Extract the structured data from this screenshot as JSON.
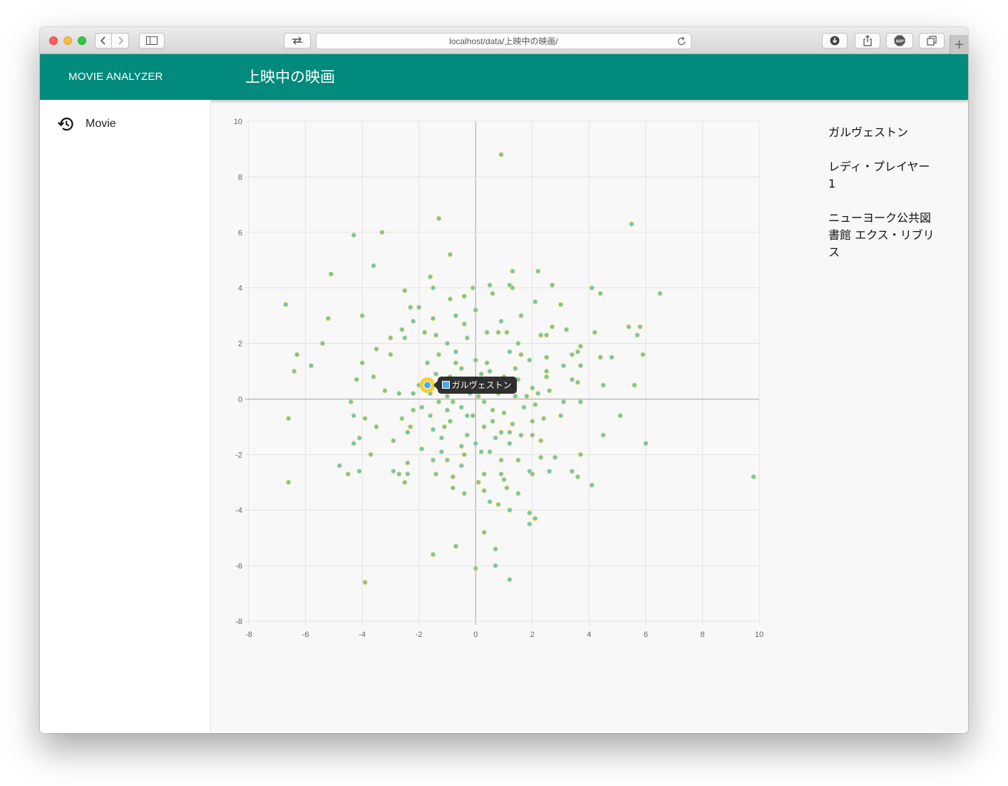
{
  "browser": {
    "url": "localhost/data/上映中の映画/"
  },
  "appbar": {
    "brand": "MOVIE ANALYZER",
    "title": "上映中の映画"
  },
  "sidebar": {
    "items": [
      {
        "label": "Movie",
        "icon": "history-icon"
      }
    ]
  },
  "movie_list": [
    "ガルヴェストン",
    "レディ・プレイヤー1",
    "ニューヨーク公共図書館 エクス・リブリス"
  ],
  "tooltip": {
    "label": "ガルヴェストン",
    "swatch_color": "#4ea9ec"
  },
  "colors": {
    "accent": "#028a7c",
    "point_fill": "#5ec8c8",
    "point_stroke": "#f2d04a",
    "highlight": "#f7cf3a",
    "highlight_inner": "#4ea9ec"
  },
  "chart_data": {
    "type": "scatter",
    "xlim": [
      -8,
      10
    ],
    "ylim": [
      -8,
      10
    ],
    "x_ticks": [
      -8,
      -6,
      -4,
      -2,
      0,
      2,
      4,
      6,
      8,
      10
    ],
    "y_ticks": [
      -8,
      -6,
      -4,
      -2,
      0,
      2,
      4,
      6,
      8,
      10
    ],
    "grid": true,
    "highlighted_point": {
      "x": -1.7,
      "y": 0.5,
      "label": "ガルヴェストン"
    },
    "points": [
      [
        0.9,
        8.8
      ],
      [
        -1.3,
        6.5
      ],
      [
        5.5,
        6.3
      ],
      [
        -4.3,
        5.9
      ],
      [
        -3.3,
        6.0
      ],
      [
        -0.9,
        5.2
      ],
      [
        -3.6,
        4.8
      ],
      [
        -5.1,
        4.5
      ],
      [
        1.3,
        4.6
      ],
      [
        2.2,
        4.6
      ],
      [
        -1.6,
        4.4
      ],
      [
        -1.5,
        4.0
      ],
      [
        0.5,
        4.1
      ],
      [
        1.2,
        4.1
      ],
      [
        2.7,
        4.1
      ],
      [
        4.1,
        4.0
      ],
      [
        4.4,
        3.8
      ],
      [
        6.5,
        3.8
      ],
      [
        -6.7,
        3.4
      ],
      [
        -2.5,
        3.9
      ],
      [
        -0.9,
        3.6
      ],
      [
        -0.4,
        3.7
      ],
      [
        0.6,
        3.8
      ],
      [
        1.3,
        4.0
      ],
      [
        2.1,
        3.5
      ],
      [
        3.0,
        3.4
      ],
      [
        -0.1,
        4.0
      ],
      [
        -2.0,
        3.3
      ],
      [
        -4.0,
        3.0
      ],
      [
        -5.2,
        2.9
      ],
      [
        -0.7,
        3.0
      ],
      [
        0.0,
        3.2
      ],
      [
        -2.3,
        3.3
      ],
      [
        -1.5,
        2.9
      ],
      [
        0.9,
        2.8
      ],
      [
        1.6,
        3.0
      ],
      [
        -2.2,
        2.8
      ],
      [
        -1.8,
        2.4
      ],
      [
        -2.6,
        2.5
      ],
      [
        -0.4,
        2.7
      ],
      [
        0.4,
        2.4
      ],
      [
        1.1,
        2.4
      ],
      [
        2.3,
        2.3
      ],
      [
        2.7,
        2.6
      ],
      [
        3.2,
        2.5
      ],
      [
        4.2,
        2.4
      ],
      [
        5.4,
        2.6
      ],
      [
        5.8,
        2.6
      ],
      [
        -3.0,
        2.2
      ],
      [
        -2.5,
        2.2
      ],
      [
        -1.4,
        2.3
      ],
      [
        -0.3,
        2.2
      ],
      [
        0.8,
        2.4
      ],
      [
        1.5,
        2.0
      ],
      [
        2.5,
        2.3
      ],
      [
        5.7,
        2.3
      ],
      [
        -5.4,
        2.0
      ],
      [
        -3.5,
        1.8
      ],
      [
        -1.3,
        1.6
      ],
      [
        -0.7,
        1.7
      ],
      [
        1.2,
        1.7
      ],
      [
        1.6,
        1.6
      ],
      [
        2.5,
        1.5
      ],
      [
        3.4,
        1.6
      ],
      [
        3.6,
        1.7
      ],
      [
        3.7,
        1.9
      ],
      [
        4.4,
        1.5
      ],
      [
        4.8,
        1.5
      ],
      [
        5.9,
        1.6
      ],
      [
        -6.3,
        1.6
      ],
      [
        -5.8,
        1.2
      ],
      [
        -4.0,
        1.3
      ],
      [
        -1.7,
        1.3
      ],
      [
        -0.7,
        1.3
      ],
      [
        0.0,
        1.4
      ],
      [
        0.5,
        1.0
      ],
      [
        1.4,
        1.1
      ],
      [
        2.5,
        1.0
      ],
      [
        3.1,
        1.2
      ],
      [
        3.7,
        1.2
      ],
      [
        -6.4,
        1.0
      ],
      [
        -4.2,
        0.7
      ],
      [
        -3.6,
        0.8
      ],
      [
        -1.4,
        0.9
      ],
      [
        -0.9,
        0.8
      ],
      [
        -0.3,
        0.7
      ],
      [
        0.2,
        0.9
      ],
      [
        1.0,
        0.8
      ],
      [
        1.5,
        0.7
      ],
      [
        2.5,
        0.8
      ],
      [
        3.4,
        0.7
      ],
      [
        -3.2,
        0.3
      ],
      [
        -2.7,
        0.2
      ],
      [
        -2.2,
        0.2
      ],
      [
        -1.2,
        0.5
      ],
      [
        -0.6,
        0.4
      ],
      [
        -0.2,
        0.2
      ],
      [
        0.4,
        0.6
      ],
      [
        0.8,
        0.2
      ],
      [
        1.3,
        0.5
      ],
      [
        2.0,
        0.4
      ],
      [
        2.6,
        0.3
      ],
      [
        3.6,
        0.6
      ],
      [
        4.5,
        0.5
      ],
      [
        5.6,
        0.5
      ],
      [
        -2.0,
        0.5
      ],
      [
        -1.0,
        0.1
      ],
      [
        0.1,
        0.1
      ],
      [
        1.8,
        0.1
      ],
      [
        -4.4,
        -0.1
      ],
      [
        -1.9,
        -0.3
      ],
      [
        -1.0,
        -0.4
      ],
      [
        -0.5,
        -0.3
      ],
      [
        0.3,
        -0.1
      ],
      [
        1.0,
        -0.5
      ],
      [
        1.7,
        -0.3
      ],
      [
        2.1,
        -0.2
      ],
      [
        3.1,
        -0.1
      ],
      [
        3.7,
        -0.1
      ],
      [
        -6.6,
        -0.7
      ],
      [
        -4.3,
        -0.6
      ],
      [
        -3.9,
        -0.7
      ],
      [
        -2.6,
        -0.7
      ],
      [
        -1.6,
        -0.6
      ],
      [
        -0.9,
        -0.8
      ],
      [
        -0.3,
        -0.6
      ],
      [
        0.6,
        -0.8
      ],
      [
        1.3,
        -0.9
      ],
      [
        2.0,
        -0.8
      ],
      [
        2.4,
        -0.7
      ],
      [
        3.0,
        -0.6
      ],
      [
        5.1,
        -0.6
      ],
      [
        -3.5,
        -1.0
      ],
      [
        -2.3,
        -1.0
      ],
      [
        -1.5,
        -1.1
      ],
      [
        -1.1,
        -1.0
      ],
      [
        -0.3,
        -1.3
      ],
      [
        0.3,
        -1.0
      ],
      [
        0.9,
        -1.2
      ],
      [
        1.6,
        -1.3
      ],
      [
        2.0,
        -1.3
      ],
      [
        2.3,
        -1.5
      ],
      [
        4.5,
        -1.3
      ],
      [
        -4.1,
        -1.4
      ],
      [
        -2.9,
        -1.5
      ],
      [
        -1.9,
        -1.8
      ],
      [
        -1.2,
        -1.4
      ],
      [
        -0.5,
        -1.7
      ],
      [
        0.5,
        -1.9
      ],
      [
        1.2,
        -1.6
      ],
      [
        2.3,
        -2.1
      ],
      [
        3.7,
        -2.0
      ],
      [
        6.0,
        -1.6
      ],
      [
        -4.3,
        -1.6
      ],
      [
        -3.7,
        -2.0
      ],
      [
        -1.5,
        -2.2
      ],
      [
        -1.0,
        -2.2
      ],
      [
        -0.4,
        -2.0
      ],
      [
        0.2,
        -1.9
      ],
      [
        0.9,
        -2.2
      ],
      [
        1.5,
        -2.2
      ],
      [
        2.8,
        -2.1
      ],
      [
        -4.8,
        -2.4
      ],
      [
        -4.1,
        -2.6
      ],
      [
        -2.9,
        -2.6
      ],
      [
        -2.4,
        -2.3
      ],
      [
        -1.4,
        -2.7
      ],
      [
        -0.5,
        -2.4
      ],
      [
        0.3,
        -2.7
      ],
      [
        0.9,
        -2.7
      ],
      [
        1.9,
        -2.6
      ],
      [
        2.6,
        -2.6
      ],
      [
        3.4,
        -2.6
      ],
      [
        -4.5,
        -2.7
      ],
      [
        -2.7,
        -2.7
      ],
      [
        -2.4,
        -2.7
      ],
      [
        -0.8,
        -2.8
      ],
      [
        0.1,
        -3.0
      ],
      [
        1.0,
        -2.9
      ],
      [
        2.0,
        -2.7
      ],
      [
        3.6,
        -2.8
      ],
      [
        9.8,
        -2.8
      ],
      [
        -6.6,
        -3.0
      ],
      [
        -2.5,
        -3.0
      ],
      [
        -0.8,
        -3.2
      ],
      [
        -0.4,
        -3.4
      ],
      [
        0.3,
        -3.3
      ],
      [
        1.1,
        -3.2
      ],
      [
        1.5,
        -3.4
      ],
      [
        4.1,
        -3.1
      ],
      [
        0.5,
        -3.7
      ],
      [
        0.8,
        -3.8
      ],
      [
        1.2,
        -4.0
      ],
      [
        1.9,
        -4.1
      ],
      [
        2.1,
        -4.3
      ],
      [
        1.9,
        -4.5
      ],
      [
        0.3,
        -4.8
      ],
      [
        -0.7,
        -5.3
      ],
      [
        -1.5,
        -5.6
      ],
      [
        0.7,
        -5.4
      ],
      [
        0.7,
        -6.0
      ],
      [
        0.0,
        -6.1
      ],
      [
        -3.9,
        -6.6
      ],
      [
        1.2,
        -6.5
      ],
      [
        -1.3,
        -0.1
      ],
      [
        -0.8,
        -0.1
      ],
      [
        -0.1,
        -0.6
      ],
      [
        0.6,
        -0.4
      ],
      [
        1.4,
        0.1
      ],
      [
        2.2,
        0.2
      ],
      [
        -2.4,
        -1.2
      ],
      [
        -1.2,
        -1.9
      ],
      [
        0.0,
        -1.6
      ],
      [
        0.7,
        -1.4
      ],
      [
        1.2,
        -1.2
      ],
      [
        -2.2,
        -0.4
      ],
      [
        -1.6,
        0.2
      ],
      [
        -0.5,
        1.1
      ],
      [
        0.4,
        1.3
      ],
      [
        1.9,
        1.4
      ],
      [
        -3.0,
        1.6
      ],
      [
        -1.0,
        2.0
      ]
    ]
  }
}
